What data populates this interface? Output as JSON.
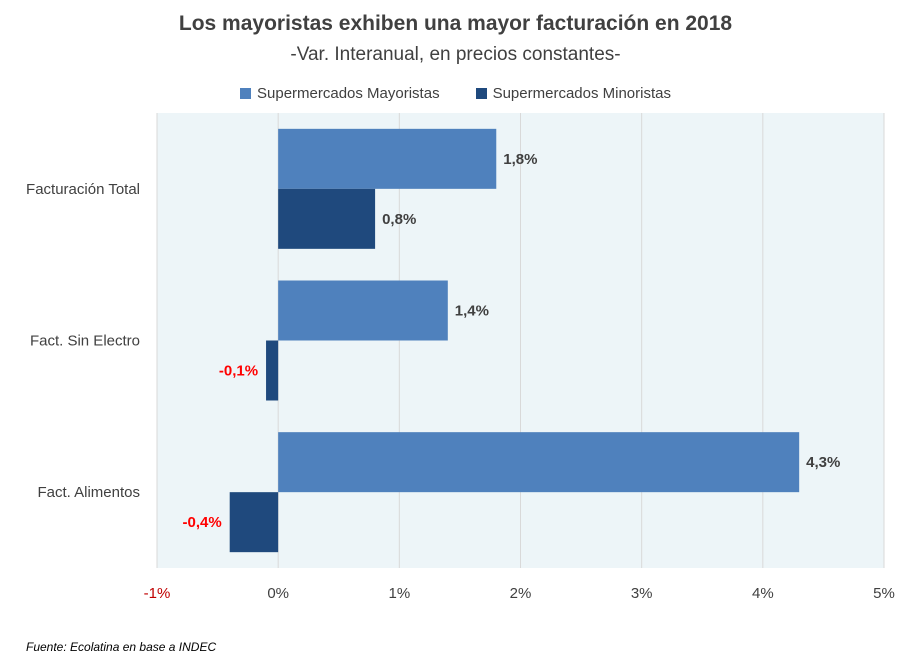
{
  "chart_data": {
    "type": "bar",
    "orientation": "horizontal",
    "title": "Los mayoristas exhiben una mayor facturación en 2018",
    "subtitle": "-Var. Interanual, en precios constantes-",
    "categories": [
      "Facturación Total",
      "Fact. Sin Electro",
      "Fact. Alimentos"
    ],
    "series": [
      {
        "name": "Supermercados Mayoristas",
        "color": "#4f81bd",
        "values": [
          1.8,
          1.4,
          4.3
        ],
        "labels": [
          "1,8%",
          "1,4%",
          "4,3%"
        ]
      },
      {
        "name": "Supermercados Minoristas",
        "color": "#1f497d",
        "values": [
          0.8,
          -0.1,
          -0.4
        ],
        "labels": [
          "0,8%",
          "-0,1%",
          "-0,4%"
        ]
      }
    ],
    "xlim": [
      -1,
      5
    ],
    "x_ticks": [
      -1,
      0,
      1,
      2,
      3,
      4,
      5
    ],
    "x_tick_labels": [
      "-1%",
      "0%",
      "1%",
      "2%",
      "3%",
      "4%",
      "5%"
    ],
    "grid": true,
    "legend_position": "top",
    "plot_background": "#edf5f8",
    "negative_label_color": "#ff0000",
    "negative_tick_color": "#c00000"
  },
  "source": "Fuente: Ecolatina en base a INDEC"
}
